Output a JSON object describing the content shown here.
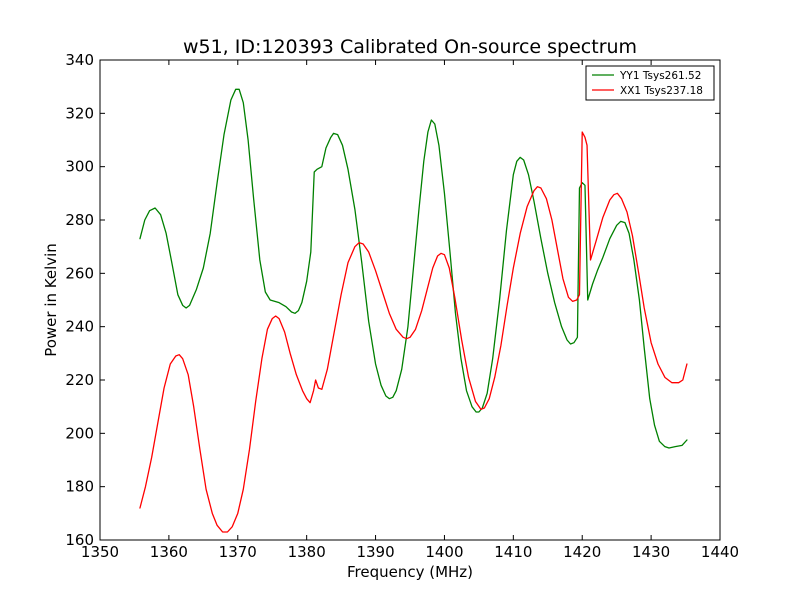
{
  "chart_data": {
    "type": "line",
    "title": "w51, ID:120393 Calibrated On-source spectrum",
    "xlabel": "Frequency (MHz)",
    "ylabel": "Power in Kelvin",
    "xlim": [
      1350,
      1440
    ],
    "ylim": [
      160,
      340
    ],
    "xticks": [
      "1350",
      "1360",
      "1370",
      "1380",
      "1390",
      "1400",
      "1410",
      "1420",
      "1430",
      "1440"
    ],
    "yticks": [
      "160",
      "180",
      "200",
      "220",
      "240",
      "260",
      "280",
      "300",
      "320",
      "340"
    ],
    "grid": false,
    "legend_position": "top-right",
    "series": [
      {
        "name": "YY1 Tsys261.52",
        "color": "#008000",
        "points": [
          [
            1355.8,
            273
          ],
          [
            1356.5,
            280
          ],
          [
            1357.2,
            283.5
          ],
          [
            1358,
            284.5
          ],
          [
            1358.8,
            282
          ],
          [
            1359.6,
            275
          ],
          [
            1360.5,
            263
          ],
          [
            1361.3,
            252
          ],
          [
            1362,
            248
          ],
          [
            1362.5,
            247
          ],
          [
            1363,
            248
          ],
          [
            1364,
            254
          ],
          [
            1365,
            262
          ],
          [
            1366,
            275
          ],
          [
            1367,
            294
          ],
          [
            1368,
            312
          ],
          [
            1369,
            325
          ],
          [
            1369.7,
            329
          ],
          [
            1370.2,
            329
          ],
          [
            1370.8,
            324
          ],
          [
            1371.5,
            310
          ],
          [
            1372.3,
            288
          ],
          [
            1373.2,
            265
          ],
          [
            1374,
            253
          ],
          [
            1374.7,
            250
          ],
          [
            1376,
            249
          ],
          [
            1377,
            247.5
          ],
          [
            1377.8,
            245.5
          ],
          [
            1378.3,
            245
          ],
          [
            1378.8,
            246
          ],
          [
            1379.3,
            249
          ],
          [
            1380,
            257
          ],
          [
            1380.6,
            268
          ],
          [
            1381.1,
            298
          ],
          [
            1381.5,
            299
          ],
          [
            1382.2,
            300
          ],
          [
            1382.8,
            307
          ],
          [
            1383.5,
            311
          ],
          [
            1383.9,
            312.5
          ],
          [
            1384.5,
            312
          ],
          [
            1385.2,
            308
          ],
          [
            1386,
            299
          ],
          [
            1387,
            284
          ],
          [
            1388,
            264
          ],
          [
            1389,
            242
          ],
          [
            1390,
            226
          ],
          [
            1390.8,
            218
          ],
          [
            1391.5,
            214
          ],
          [
            1392,
            213
          ],
          [
            1392.5,
            213.5
          ],
          [
            1393,
            216
          ],
          [
            1393.8,
            224
          ],
          [
            1394.7,
            240
          ],
          [
            1395.5,
            262
          ],
          [
            1396.3,
            284
          ],
          [
            1397,
            302
          ],
          [
            1397.6,
            313
          ],
          [
            1398.1,
            317.5
          ],
          [
            1398.6,
            316
          ],
          [
            1399.2,
            308
          ],
          [
            1400,
            290
          ],
          [
            1400.8,
            268
          ],
          [
            1401.6,
            245
          ],
          [
            1402.4,
            228
          ],
          [
            1403.2,
            216
          ],
          [
            1404,
            210
          ],
          [
            1404.6,
            208
          ],
          [
            1405,
            208
          ],
          [
            1405.5,
            209.5
          ],
          [
            1406.2,
            215
          ],
          [
            1407,
            228
          ],
          [
            1408,
            250
          ],
          [
            1409,
            276
          ],
          [
            1410,
            297
          ],
          [
            1410.5,
            302
          ],
          [
            1411,
            303.5
          ],
          [
            1411.5,
            302.5
          ],
          [
            1412.2,
            297
          ],
          [
            1413,
            287
          ],
          [
            1414,
            273
          ],
          [
            1415,
            260
          ],
          [
            1416,
            249
          ],
          [
            1417,
            240
          ],
          [
            1417.8,
            235
          ],
          [
            1418.3,
            233.5
          ],
          [
            1418.8,
            234
          ],
          [
            1419.3,
            236
          ],
          [
            1419.6,
            292
          ],
          [
            1420,
            294
          ],
          [
            1420.4,
            293
          ],
          [
            1420.8,
            250
          ],
          [
            1421.5,
            256
          ],
          [
            1422.2,
            261
          ],
          [
            1423,
            266
          ],
          [
            1424,
            273
          ],
          [
            1425,
            278
          ],
          [
            1425.6,
            279.5
          ],
          [
            1426.2,
            279
          ],
          [
            1426.8,
            275
          ],
          [
            1427.5,
            265
          ],
          [
            1428.3,
            250
          ],
          [
            1429,
            232
          ],
          [
            1429.8,
            213
          ],
          [
            1430.5,
            203
          ],
          [
            1431.2,
            197
          ],
          [
            1432,
            195
          ],
          [
            1432.6,
            194.5
          ],
          [
            1433.5,
            195
          ],
          [
            1434.5,
            195.5
          ],
          [
            1435.2,
            197.5
          ]
        ]
      },
      {
        "name": "XX1 Tsys237.18",
        "color": "#ff0000",
        "points": [
          [
            1355.8,
            172
          ],
          [
            1356.6,
            180
          ],
          [
            1357.5,
            191
          ],
          [
            1358.4,
            204
          ],
          [
            1359.3,
            217
          ],
          [
            1360.2,
            226
          ],
          [
            1361,
            229
          ],
          [
            1361.5,
            229.5
          ],
          [
            1362,
            228
          ],
          [
            1362.8,
            222
          ],
          [
            1363.6,
            210
          ],
          [
            1364.5,
            194
          ],
          [
            1365.4,
            179
          ],
          [
            1366.3,
            170
          ],
          [
            1367,
            165.5
          ],
          [
            1367.8,
            163
          ],
          [
            1368.5,
            163
          ],
          [
            1369.2,
            165
          ],
          [
            1370,
            170
          ],
          [
            1370.8,
            179
          ],
          [
            1371.7,
            194
          ],
          [
            1372.6,
            212
          ],
          [
            1373.5,
            228
          ],
          [
            1374.3,
            239
          ],
          [
            1375,
            243
          ],
          [
            1375.5,
            244
          ],
          [
            1376,
            243
          ],
          [
            1376.8,
            238
          ],
          [
            1377.6,
            230
          ],
          [
            1378.5,
            222
          ],
          [
            1379.4,
            216
          ],
          [
            1380,
            213
          ],
          [
            1380.5,
            211.5
          ],
          [
            1381,
            216
          ],
          [
            1381.3,
            220
          ],
          [
            1381.7,
            217
          ],
          [
            1382.2,
            216.5
          ],
          [
            1383,
            224
          ],
          [
            1384,
            238
          ],
          [
            1385,
            252
          ],
          [
            1386,
            264
          ],
          [
            1387,
            270
          ],
          [
            1387.6,
            271.5
          ],
          [
            1388.2,
            271
          ],
          [
            1389,
            268
          ],
          [
            1390,
            261
          ],
          [
            1391,
            253
          ],
          [
            1392,
            245
          ],
          [
            1393,
            239
          ],
          [
            1394,
            236
          ],
          [
            1394.5,
            235.5
          ],
          [
            1395,
            236
          ],
          [
            1395.8,
            239
          ],
          [
            1396.7,
            246
          ],
          [
            1397.5,
            254
          ],
          [
            1398.3,
            262
          ],
          [
            1399,
            266.5
          ],
          [
            1399.5,
            267.5
          ],
          [
            1400,
            267
          ],
          [
            1400.7,
            262
          ],
          [
            1401.5,
            251
          ],
          [
            1402.5,
            235
          ],
          [
            1403.5,
            221
          ],
          [
            1404.5,
            212
          ],
          [
            1405.3,
            209
          ],
          [
            1405.8,
            209.5
          ],
          [
            1406.5,
            213
          ],
          [
            1407.3,
            221
          ],
          [
            1408.2,
            233
          ],
          [
            1409.1,
            248
          ],
          [
            1410,
            262
          ],
          [
            1411,
            275
          ],
          [
            1412,
            285
          ],
          [
            1413,
            291
          ],
          [
            1413.5,
            292.5
          ],
          [
            1414,
            292
          ],
          [
            1414.8,
            288
          ],
          [
            1415.6,
            280
          ],
          [
            1416.4,
            269
          ],
          [
            1417.2,
            258
          ],
          [
            1418,
            251
          ],
          [
            1418.6,
            249.5
          ],
          [
            1419.2,
            250
          ],
          [
            1419.6,
            252
          ],
          [
            1420,
            313
          ],
          [
            1420.4,
            311
          ],
          [
            1420.7,
            308
          ],
          [
            1421.2,
            265
          ],
          [
            1422,
            272
          ],
          [
            1423,
            281
          ],
          [
            1424,
            287.5
          ],
          [
            1424.6,
            289.5
          ],
          [
            1425.1,
            290
          ],
          [
            1425.7,
            288
          ],
          [
            1426.5,
            283
          ],
          [
            1427.3,
            274
          ],
          [
            1428.2,
            260
          ],
          [
            1429,
            247
          ],
          [
            1430,
            234
          ],
          [
            1431,
            226
          ],
          [
            1432,
            221
          ],
          [
            1433,
            219
          ],
          [
            1434,
            219
          ],
          [
            1434.6,
            220
          ],
          [
            1435.2,
            226
          ]
        ]
      }
    ]
  }
}
